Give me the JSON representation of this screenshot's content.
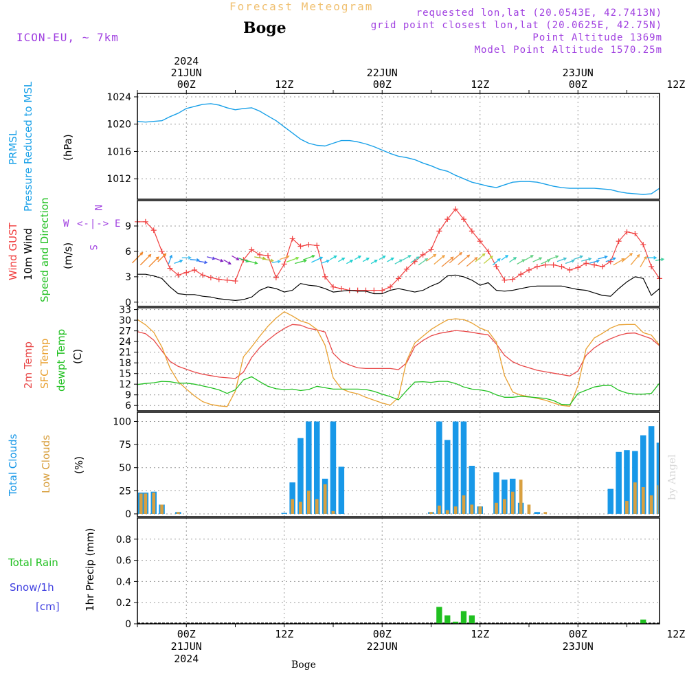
{
  "header": {
    "forecast_label": "Forecast Meteogram",
    "station": "Boge",
    "model": "ICON-EU, ~ 7km",
    "requested": "requested lon,lat (20.0543E, 42.7413N)",
    "grid_point": "grid point closest lon,lat (20.0625E, 42.75N)",
    "point_altitude": "Point Altitude 1369m",
    "model_altitude": "Model Point Altitude 1570.25m"
  },
  "time_axis": {
    "start_hour": 0,
    "end_hour": 64,
    "top_labels": [
      {
        "hour": 6,
        "lines": [
          "2024",
          "21JUN",
          "00Z"
        ]
      },
      {
        "hour": 18,
        "lines": [
          "12Z"
        ]
      },
      {
        "hour": 30,
        "lines": [
          "22JUN",
          "00Z"
        ]
      },
      {
        "hour": 42,
        "lines": [
          "12Z"
        ]
      },
      {
        "hour": 54,
        "lines": [
          "23JUN",
          "00Z"
        ]
      },
      {
        "hour": 66,
        "lines": [
          "12Z"
        ]
      }
    ],
    "bottom_labels": [
      {
        "hour": 6,
        "lines": [
          "00Z",
          "21JUN",
          "2024"
        ]
      },
      {
        "hour": 18,
        "lines": [
          "12Z"
        ]
      },
      {
        "hour": 30,
        "lines": [
          "00Z",
          "22JUN"
        ]
      },
      {
        "hour": 42,
        "lines": [
          "12Z"
        ]
      },
      {
        "hour": 54,
        "lines": [
          "00Z",
          "23JUN"
        ]
      },
      {
        "hour": 66,
        "lines": [
          "12Z"
        ]
      }
    ]
  },
  "footer": {
    "station": "Boge",
    "credit": "by Angel"
  },
  "side_labels": {
    "prmsl": "PRMSL",
    "pressure": "Pressure Reduced to MSL",
    "hpa": "(hPa)",
    "wind_gust": "Wind GUST",
    "wind_10m": "10m Wind",
    "wind_dir": "Speed and Direction",
    "ms": "(m/s)",
    "compass_w": "W",
    "compass_e": "E",
    "compass_n": "N",
    "compass_s": "S",
    "compass_arrow": "<-|->",
    "t2m": "2m Temp",
    "tsfc": "SFC Temp",
    "tdew": "dewpt Temp",
    "c": "(C)",
    "total_clouds": "Total Clouds",
    "low_clouds": "Low Clouds",
    "pct": "(%)",
    "total_rain": "Total Rain",
    "snow": "Snow/1h",
    "cm": "[cm]",
    "precip": "1hr Precip (mm)"
  },
  "colors": {
    "pressure": "#18a0e8",
    "gust": "#f04040",
    "wind10": "#000000",
    "t2m": "#e84848",
    "tsfc": "#e8a030",
    "tdew": "#20c020",
    "total_clouds": "#1898e8",
    "low_clouds": "#d8a040",
    "rain": "#20c020",
    "snow": "#4040e0",
    "meta": "#a040e0"
  },
  "chart_data": [
    {
      "type": "line",
      "name": "pressure",
      "ylim": [
        1009,
        1024.5
      ],
      "yticks": [
        1012,
        1016,
        1020,
        1024
      ],
      "x": [
        0,
        1,
        2,
        3,
        4,
        5,
        6,
        7,
        8,
        9,
        10,
        11,
        12,
        13,
        14,
        15,
        16,
        17,
        18,
        19,
        20,
        21,
        22,
        23,
        24,
        25,
        26,
        27,
        28,
        29,
        30,
        31,
        32,
        33,
        34,
        35,
        36,
        37,
        38,
        39,
        40,
        41,
        42,
        43,
        44,
        45,
        46,
        47,
        48,
        49,
        50,
        51,
        52,
        53,
        54,
        55,
        56,
        57,
        58,
        59,
        60,
        61,
        62,
        63,
        64
      ],
      "series": [
        {
          "values": [
            1020.4,
            1020.3,
            1020.4,
            1020.5,
            1021.1,
            1021.6,
            1022.3,
            1022.6,
            1022.9,
            1023.0,
            1022.8,
            1022.4,
            1022.1,
            1022.3,
            1022.4,
            1021.9,
            1021.2,
            1020.5,
            1019.6,
            1018.7,
            1017.8,
            1017.2,
            1016.9,
            1016.8,
            1017.2,
            1017.6,
            1017.6,
            1017.4,
            1017.1,
            1016.7,
            1016.2,
            1015.7,
            1015.3,
            1015.1,
            1014.8,
            1014.3,
            1013.9,
            1013.4,
            1013.1,
            1012.5,
            1012.0,
            1011.5,
            1011.2,
            1010.9,
            1010.7,
            1011.1,
            1011.5,
            1011.6,
            1011.6,
            1011.5,
            1011.2,
            1010.9,
            1010.7,
            1010.6,
            1010.6,
            1010.6,
            1010.6,
            1010.5,
            1010.4,
            1010.1,
            1009.9,
            1009.8,
            1009.7,
            1009.8,
            1010.6
          ]
        }
      ]
    },
    {
      "type": "line",
      "name": "wind",
      "ylim": [
        -0.5,
        12
      ],
      "yticks": [
        0,
        3,
        6,
        9
      ],
      "x": [
        0,
        1,
        2,
        3,
        4,
        5,
        6,
        7,
        8,
        9,
        10,
        11,
        12,
        13,
        14,
        15,
        16,
        17,
        18,
        19,
        20,
        21,
        22,
        23,
        24,
        25,
        26,
        27,
        28,
        29,
        30,
        31,
        32,
        33,
        34,
        35,
        36,
        37,
        38,
        39,
        40,
        41,
        42,
        43,
        44,
        45,
        46,
        47,
        48,
        49,
        50,
        51,
        52,
        53,
        54,
        55,
        56,
        57,
        58,
        59,
        60,
        61,
        62,
        63,
        64
      ],
      "series": [
        {
          "name": "gust",
          "values": [
            9.5,
            9.5,
            8.5,
            6.0,
            4.0,
            3.2,
            3.5,
            3.8,
            3.2,
            2.9,
            2.7,
            2.6,
            2.5,
            5.0,
            6.2,
            5.6,
            5.5,
            2.9,
            4.5,
            7.5,
            6.6,
            6.8,
            6.7,
            3.0,
            1.8,
            1.6,
            1.4,
            1.4,
            1.4,
            1.4,
            1.4,
            1.8,
            2.8,
            3.9,
            4.8,
            5.6,
            6.2,
            8.4,
            9.8,
            11.0,
            9.8,
            8.4,
            7.2,
            6.0,
            4.2,
            2.6,
            2.7,
            3.3,
            3.8,
            4.2,
            4.4,
            4.4,
            4.2,
            3.8,
            4.1,
            4.6,
            4.4,
            4.2,
            4.8,
            7.2,
            8.3,
            8.1,
            6.8,
            4.2,
            2.8
          ]
        },
        {
          "name": "wind10",
          "values": [
            3.3,
            3.3,
            3.1,
            2.8,
            1.8,
            1.0,
            0.9,
            0.9,
            0.7,
            0.6,
            0.4,
            0.3,
            0.2,
            0.3,
            0.6,
            1.4,
            1.8,
            1.6,
            1.2,
            1.4,
            2.2,
            2.0,
            1.9,
            1.6,
            1.2,
            1.3,
            1.4,
            1.3,
            1.3,
            1.0,
            1.0,
            1.4,
            1.6,
            1.4,
            1.2,
            1.4,
            1.9,
            2.3,
            3.1,
            3.2,
            3.0,
            2.6,
            2.0,
            2.3,
            1.4,
            1.3,
            1.4,
            1.6,
            1.8,
            1.9,
            1.9,
            1.9,
            1.9,
            1.7,
            1.5,
            1.4,
            1.1,
            0.8,
            0.7,
            1.6,
            2.4,
            3.0,
            2.8,
            0.8,
            1.6
          ]
        }
      ]
    },
    {
      "type": "line",
      "name": "temperature",
      "ylim": [
        4.5,
        33.5
      ],
      "yticks": [
        6,
        9,
        12,
        15,
        18,
        21,
        24,
        27,
        30,
        33
      ],
      "x": [
        0,
        1,
        2,
        3,
        4,
        5,
        6,
        7,
        8,
        9,
        10,
        11,
        12,
        13,
        14,
        15,
        16,
        17,
        18,
        19,
        20,
        21,
        22,
        23,
        24,
        25,
        26,
        27,
        28,
        29,
        30,
        31,
        32,
        33,
        34,
        35,
        36,
        37,
        38,
        39,
        40,
        41,
        42,
        43,
        44,
        45,
        46,
        47,
        48,
        49,
        50,
        51,
        52,
        53,
        54,
        55,
        56,
        57,
        58,
        59,
        60,
        61,
        62,
        63,
        64
      ],
      "series": [
        {
          "name": "t2m",
          "values": [
            26.8,
            26.2,
            24.4,
            21.4,
            18.4,
            17.0,
            16.2,
            15.4,
            14.8,
            14.4,
            14.0,
            13.8,
            13.6,
            15.4,
            19.5,
            22.3,
            24.4,
            26.2,
            27.7,
            28.8,
            28.6,
            27.7,
            27.3,
            26.7,
            20.7,
            18.4,
            17.4,
            16.6,
            16.4,
            16.4,
            16.4,
            16.4,
            16.1,
            18.0,
            22.6,
            24.3,
            25.6,
            26.3,
            26.7,
            27.1,
            26.9,
            26.6,
            26.2,
            25.9,
            23.3,
            20.1,
            18.3,
            17.3,
            16.6,
            15.9,
            15.5,
            15.1,
            14.7,
            14.3,
            15.7,
            20.1,
            22.2,
            23.7,
            24.8,
            25.7,
            26.3,
            26.4,
            25.6,
            24.8,
            22.8
          ]
        },
        {
          "name": "tsfc",
          "values": [
            30.2,
            28.7,
            26.6,
            22.5,
            16.5,
            12.7,
            10.6,
            8.7,
            7.1,
            6.3,
            5.9,
            5.7,
            10.0,
            19.7,
            22.5,
            25.5,
            28.3,
            30.6,
            32.4,
            31.2,
            29.8,
            29.1,
            27.4,
            23.0,
            13.8,
            10.7,
            9.8,
            9.3,
            8.3,
            7.5,
            6.7,
            6.1,
            8.3,
            18.6,
            23.6,
            25.5,
            27.4,
            28.8,
            30.1,
            30.4,
            30.2,
            29.2,
            27.8,
            26.9,
            23.8,
            14.4,
            9.8,
            8.9,
            8.5,
            8.0,
            7.5,
            6.7,
            6.0,
            5.8,
            11.6,
            21.9,
            25.0,
            26.3,
            27.8,
            28.7,
            28.8,
            28.8,
            26.5,
            25.8,
            23.0
          ]
        },
        {
          "name": "tdew",
          "values": [
            11.9,
            12.2,
            12.4,
            12.8,
            12.7,
            12.3,
            12.3,
            12.0,
            11.5,
            11.0,
            10.4,
            9.4,
            10.4,
            13.2,
            14.1,
            12.7,
            11.4,
            10.7,
            10.5,
            10.6,
            10.2,
            10.5,
            11.4,
            11.0,
            10.6,
            10.6,
            10.6,
            10.6,
            10.5,
            10.0,
            9.2,
            8.5,
            7.6,
            10.2,
            12.6,
            12.7,
            12.5,
            12.8,
            12.8,
            12.2,
            11.2,
            10.6,
            10.4,
            10.0,
            9.0,
            8.3,
            8.3,
            8.6,
            8.4,
            8.2,
            8.0,
            7.4,
            6.3,
            6.2,
            9.4,
            10.3,
            11.2,
            11.6,
            11.7,
            10.3,
            9.5,
            9.2,
            9.2,
            9.4,
            12.3
          ]
        }
      ]
    },
    {
      "type": "bar",
      "name": "clouds",
      "ylim": [
        -3,
        110
      ],
      "yticks": [
        0,
        25,
        50,
        75,
        100
      ],
      "x": [
        0,
        1,
        2,
        3,
        4,
        5,
        6,
        7,
        8,
        9,
        10,
        11,
        12,
        13,
        14,
        15,
        16,
        17,
        18,
        19,
        20,
        21,
        22,
        23,
        24,
        25,
        26,
        27,
        28,
        29,
        30,
        31,
        32,
        33,
        34,
        35,
        36,
        37,
        38,
        39,
        40,
        41,
        42,
        43,
        44,
        45,
        46,
        47,
        48,
        49,
        50,
        51,
        52,
        53,
        54,
        55,
        56,
        57,
        58,
        59,
        60,
        61,
        62,
        63,
        64
      ],
      "series": [
        {
          "name": "total",
          "values": [
            23,
            23,
            24,
            10,
            0,
            2,
            0,
            0,
            0,
            0,
            0,
            0,
            0,
            0,
            0,
            0,
            0,
            0,
            1,
            34,
            82,
            100,
            100,
            38,
            100,
            51,
            0,
            0,
            0,
            0,
            0,
            0,
            0,
            0,
            0,
            0,
            2,
            100,
            80,
            100,
            100,
            52,
            8,
            0,
            45,
            37,
            38,
            12,
            0,
            2,
            0,
            0,
            0,
            0,
            0,
            0,
            0,
            0,
            27,
            67,
            69,
            68,
            85,
            95,
            77
          ]
        },
        {
          "name": "low",
          "values": [
            22,
            22,
            23,
            10,
            0,
            2,
            0,
            0,
            0,
            0,
            0,
            0,
            0,
            0,
            0,
            0,
            0,
            0,
            0,
            16,
            13,
            25,
            16,
            32,
            3,
            0,
            0,
            0,
            0,
            0,
            0,
            0,
            0,
            0,
            0,
            0,
            2,
            9,
            4,
            8,
            20,
            10,
            8,
            0,
            12,
            16,
            24,
            37,
            10,
            0,
            2,
            0,
            0,
            0,
            0,
            0,
            0,
            0,
            0,
            0,
            14,
            34,
            29,
            20,
            31
          ]
        }
      ]
    },
    {
      "type": "bar",
      "name": "precip",
      "ylim": [
        0,
        1.0
      ],
      "yticks": [
        0,
        0.2,
        0.4,
        0.6,
        0.8
      ],
      "x": [
        37,
        38,
        39,
        40,
        41,
        62
      ],
      "series": [
        {
          "name": "rain",
          "values": [
            0.16,
            0.08,
            0.02,
            0.12,
            0.08,
            0.04
          ]
        }
      ]
    }
  ],
  "wind_arrows": {
    "x": [
      0,
      1,
      2,
      3,
      4,
      5,
      6,
      7,
      8,
      9,
      10,
      11,
      12,
      13,
      14,
      15,
      16,
      17,
      18,
      19,
      20,
      21,
      22,
      23,
      24,
      25,
      26,
      27,
      28,
      29,
      30,
      31,
      32,
      33,
      34,
      35,
      36,
      37,
      38,
      39,
      40,
      41,
      42,
      43,
      44,
      45,
      46,
      47,
      48,
      49,
      50,
      51,
      52,
      53,
      54,
      55,
      56,
      57,
      58,
      59,
      60,
      61,
      62,
      63,
      64
    ],
    "from_dir_deg": [
      225,
      225,
      225,
      225,
      200,
      250,
      270,
      275,
      280,
      285,
      290,
      300,
      300,
      290,
      285,
      280,
      280,
      260,
      250,
      250,
      255,
      250,
      245,
      250,
      240,
      240,
      240,
      240,
      240,
      240,
      240,
      240,
      240,
      240,
      235,
      235,
      235,
      230,
      230,
      230,
      230,
      230,
      230,
      230,
      230,
      235,
      235,
      240,
      240,
      245,
      245,
      250,
      250,
      250,
      250,
      255,
      255,
      255,
      250,
      240,
      230,
      220,
      210,
      270,
      260
    ],
    "colors": [
      "#f08020",
      "#f08020",
      "#f08020",
      "#f08020",
      "#20a0f0",
      "#20b0f0",
      "#40c0f0",
      "#2090f0",
      "#4060f0",
      "#6040e0",
      "#8020c0",
      "#8020c0",
      "#9020c0",
      "#20c060",
      "#40d040",
      "#a0c020",
      "#c0c040",
      "#40c0f0",
      "#f0a040",
      "#80e040",
      "#40d040",
      "#40d040",
      "#20c0f0",
      "#20c0f0",
      "#20d0d0",
      "#20d0d0",
      "#20d0d0",
      "#20d0d0",
      "#20d0d0",
      "#20d0d0",
      "#20d0d0",
      "#20d0d0",
      "#40d0c0",
      "#40d0c0",
      "#40d0c0",
      "#60d0a0",
      "#f0a040",
      "#f0a040",
      "#f09040",
      "#f09040",
      "#f09040",
      "#f09040",
      "#c0d040",
      "#c0d040",
      "#20c0f0",
      "#20c0f0",
      "#40d0a0",
      "#60d080",
      "#60d080",
      "#60d080",
      "#60d080",
      "#60d080",
      "#40c0d0",
      "#40c0d0",
      "#40c0d0",
      "#40c0d0",
      "#20a0f0",
      "#20a0f0",
      "#20a0f0",
      "#f0a040",
      "#f0a040",
      "#f0a040",
      "#f0a040",
      "#20c0f0",
      "#40d0a0"
    ]
  }
}
